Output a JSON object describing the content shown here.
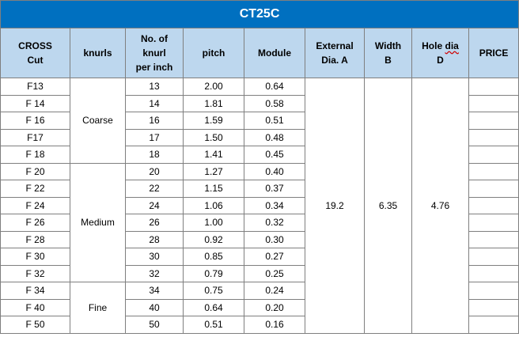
{
  "title": "CT25C",
  "headers": {
    "cross_cut": [
      "CROSS",
      "Cut"
    ],
    "knurls": "knurls",
    "knurl_per_inch": [
      "No. of",
      "knurl",
      "per inch"
    ],
    "pitch": "pitch",
    "module": "Module",
    "external_dia": [
      "External",
      "Dia. A"
    ],
    "width": [
      "Width",
      "B"
    ],
    "hole_dia": [
      "Hole",
      "dia",
      "D"
    ],
    "price": "PRICE"
  },
  "groups": [
    {
      "label": "Coarse",
      "rows": 5
    },
    {
      "label": "Medium",
      "rows": 7
    },
    {
      "label": "Fine",
      "rows": 3
    }
  ],
  "shared": {
    "external_dia": "19.2",
    "width": "6.35",
    "hole_dia": "4.76"
  },
  "rows": [
    {
      "cut": "F13",
      "knurls": "13",
      "pitch": "2.00",
      "module": "0.64"
    },
    {
      "cut": "F 14",
      "knurls": "14",
      "pitch": "1.81",
      "module": "0.58"
    },
    {
      "cut": "F 16",
      "knurls": "16",
      "pitch": "1.59",
      "module": "0.51"
    },
    {
      "cut": "F17",
      "knurls": "17",
      "pitch": "1.50",
      "module": "0.48"
    },
    {
      "cut": "F 18",
      "knurls": "18",
      "pitch": "1.41",
      "module": "0.45"
    },
    {
      "cut": "F 20",
      "knurls": "20",
      "pitch": "1.27",
      "module": "0.40"
    },
    {
      "cut": "F 22",
      "knurls": "22",
      "pitch": "1.15",
      "module": "0.37"
    },
    {
      "cut": "F 24",
      "knurls": "24",
      "pitch": "1.06",
      "module": "0.34"
    },
    {
      "cut": "F 26",
      "knurls": "26",
      "pitch": "1.00",
      "module": "0.32"
    },
    {
      "cut": "F 28",
      "knurls": "28",
      "pitch": "0.92",
      "module": "0.30"
    },
    {
      "cut": "F 30",
      "knurls": "30",
      "pitch": "0.85",
      "module": "0.27"
    },
    {
      "cut": "F 32",
      "knurls": "32",
      "pitch": "0.79",
      "module": "0.25"
    },
    {
      "cut": "F 34",
      "knurls": "34",
      "pitch": "0.75",
      "module": "0.24"
    },
    {
      "cut": "F 40",
      "knurls": "40",
      "pitch": "0.64",
      "module": "0.20"
    },
    {
      "cut": "F 50",
      "knurls": "50",
      "pitch": "0.51",
      "module": "0.16"
    }
  ],
  "colors": {
    "title_bg": "#0070c0",
    "header_bg": "#bdd7ee",
    "border": "#7f7f7f"
  }
}
